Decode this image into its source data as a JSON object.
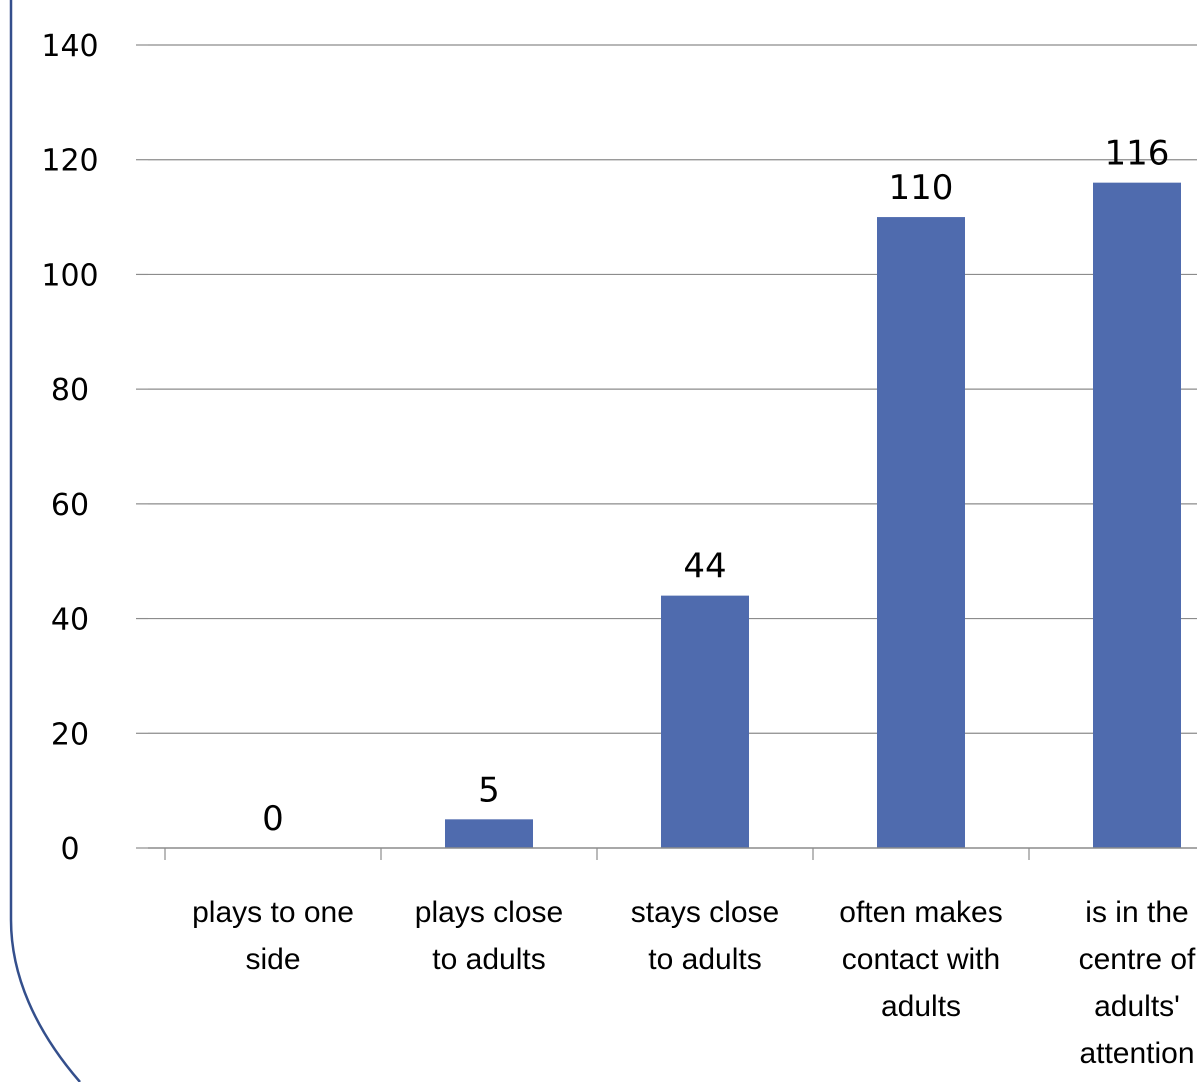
{
  "chart_data": {
    "type": "bar",
    "title": "",
    "xlabel": "",
    "ylabel": "",
    "ylim": [
      0,
      140
    ],
    "yticks": [
      0,
      20,
      40,
      60,
      80,
      100,
      120,
      140
    ],
    "grid": true,
    "categories": [
      [
        "plays to one",
        "side"
      ],
      [
        "plays close",
        "to adults"
      ],
      [
        "stays close",
        "to adults"
      ],
      [
        "often makes",
        "contact with",
        "adults"
      ],
      [
        "is in the",
        "centre of",
        "adults'",
        "attention"
      ]
    ],
    "values": [
      0,
      5,
      44,
      110,
      116
    ],
    "data_labels": [
      "0",
      "5",
      "44",
      "110",
      "116"
    ],
    "bar_color": "#4f6bae",
    "gridline_color": "#8c8c8c",
    "frame_color": "#344f8c"
  }
}
